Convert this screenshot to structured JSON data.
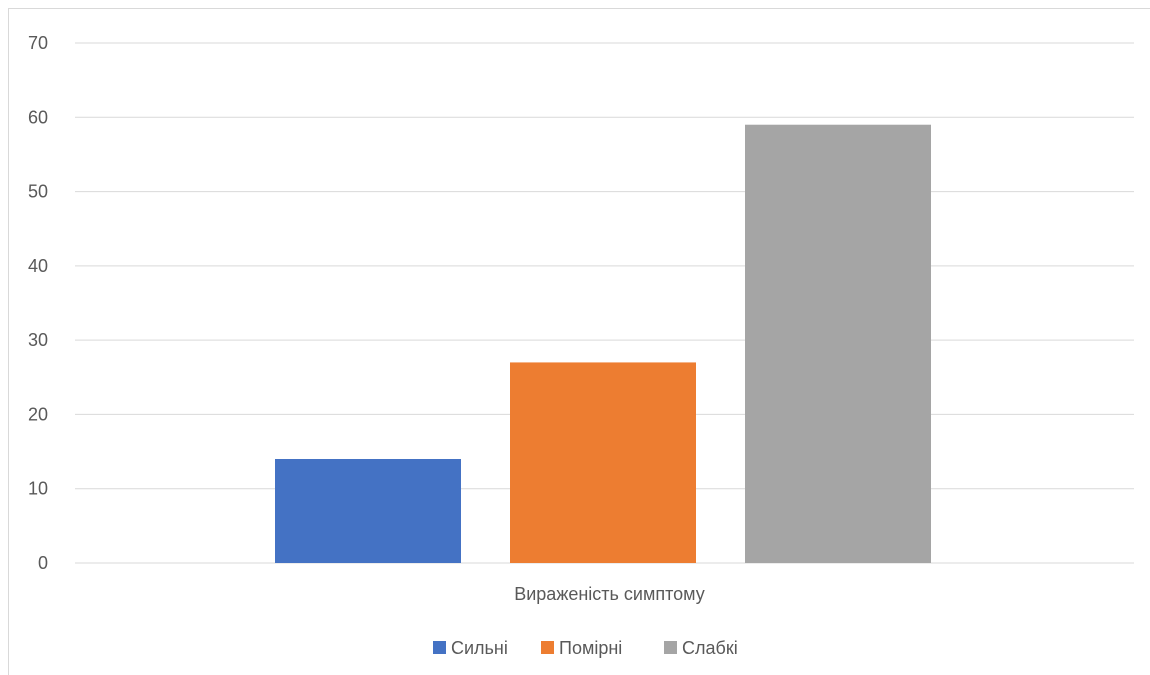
{
  "chart_data": {
    "type": "bar",
    "categories": [
      "Вираженість симптому"
    ],
    "series": [
      {
        "name": "Сильні",
        "values": [
          14
        ],
        "color": "#4472c4"
      },
      {
        "name": "Помірні",
        "values": [
          27
        ],
        "color": "#ed7d31"
      },
      {
        "name": "Слабкі",
        "values": [
          59
        ],
        "color": "#a5a5a5"
      }
    ],
    "title": "",
    "xlabel": "",
    "ylabel": "",
    "ylim": [
      0,
      70
    ],
    "yticks": [
      0,
      10,
      20,
      30,
      40,
      50,
      60,
      70
    ],
    "grid": true,
    "legend_position": "bottom",
    "colors": {
      "grid": "#d9d9d9",
      "text": "#595959"
    }
  }
}
